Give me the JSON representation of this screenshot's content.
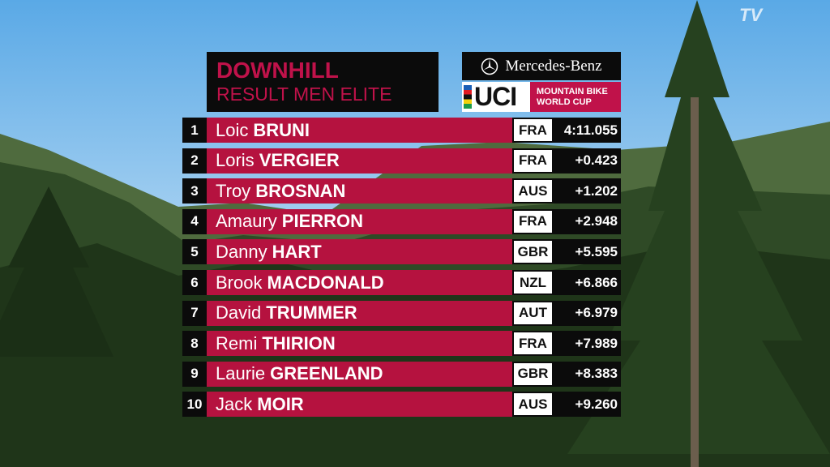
{
  "header": {
    "title": "DOWNHILL",
    "subtitle": "RESULT MEN ELITE"
  },
  "sponsor": {
    "brand": "Mercedes-Benz",
    "uci": "UCI",
    "line1": "MOUNTAIN BIKE",
    "line2": "WORLD CUP"
  },
  "channel": "TV",
  "results": [
    {
      "rank": 1,
      "first": "Loic",
      "last": "BRUNI",
      "country": "FRA",
      "time": "4:11.055"
    },
    {
      "rank": 2,
      "first": "Loris",
      "last": "VERGIER",
      "country": "FRA",
      "time": "+0.423"
    },
    {
      "rank": 3,
      "first": "Troy",
      "last": "BROSNAN",
      "country": "AUS",
      "time": "+1.202"
    },
    {
      "rank": 4,
      "first": "Amaury",
      "last": "PIERRON",
      "country": "FRA",
      "time": "+2.948"
    },
    {
      "rank": 5,
      "first": "Danny",
      "last": "HART",
      "country": "GBR",
      "time": "+5.595"
    },
    {
      "rank": 6,
      "first": "Brook",
      "last": "MACDONALD",
      "country": "NZL",
      "time": "+6.866"
    },
    {
      "rank": 7,
      "first": "David",
      "last": "TRUMMER",
      "country": "AUT",
      "time": "+6.979"
    },
    {
      "rank": 8,
      "first": "Remi",
      "last": "THIRION",
      "country": "FRA",
      "time": "+7.989"
    },
    {
      "rank": 9,
      "first": "Laurie",
      "last": "GREENLAND",
      "country": "GBR",
      "time": "+8.383"
    },
    {
      "rank": 10,
      "first": "Jack",
      "last": "MOIR",
      "country": "AUS",
      "time": "+9.260"
    }
  ]
}
